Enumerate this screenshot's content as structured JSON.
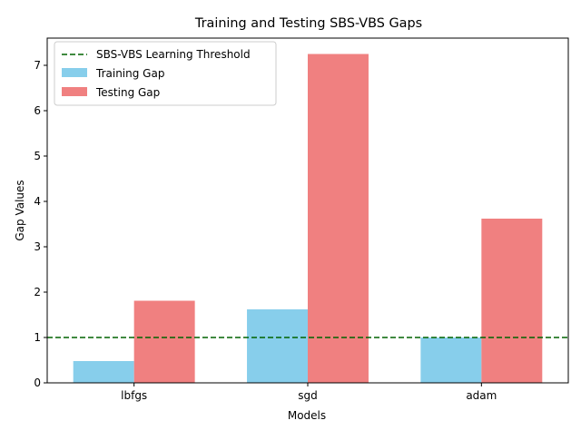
{
  "chart_data": {
    "type": "bar",
    "title": "Training and Testing SBS-VBS Gaps",
    "xlabel": "Models",
    "ylabel": "Gap Values",
    "categories": [
      "lbfgs",
      "sgd",
      "adam"
    ],
    "series": [
      {
        "name": "Training Gap",
        "values": [
          0.48,
          1.62,
          1.0
        ],
        "color": "#87ceeb"
      },
      {
        "name": "Testing Gap",
        "values": [
          1.81,
          7.25,
          3.62
        ],
        "color": "#f08080"
      }
    ],
    "threshold": {
      "name": "SBS-VBS Learning Threshold",
      "value": 1.0,
      "color": "#006400",
      "style": "dashed"
    },
    "ylim": [
      0,
      7.6
    ],
    "yticks": [
      0,
      1,
      2,
      3,
      4,
      5,
      6,
      7
    ],
    "legend_position": "upper-left",
    "grid": false
  }
}
